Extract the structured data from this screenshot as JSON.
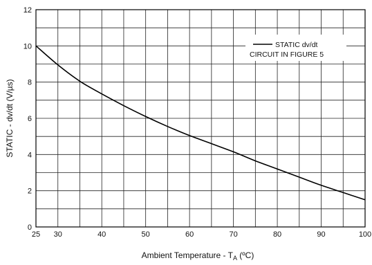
{
  "chart_data": {
    "type": "line",
    "title": "",
    "xlabel": {
      "main": "Ambient Temperature - T",
      "sub": "A",
      "unit": " (ºC)"
    },
    "ylabel": "STATIC - dv/dt (V/µs)",
    "xlim": [
      25,
      100
    ],
    "ylim": [
      0,
      12
    ],
    "x_ticks": [
      25,
      30,
      40,
      50,
      60,
      70,
      80,
      90,
      100
    ],
    "y_ticks": [
      0,
      2,
      4,
      6,
      8,
      10,
      12
    ],
    "x_grid": [
      25,
      30,
      35,
      40,
      45,
      50,
      55,
      60,
      65,
      70,
      75,
      80,
      85,
      90,
      95,
      100
    ],
    "y_grid": [
      0,
      1,
      2,
      3,
      4,
      5,
      6,
      7,
      8,
      9,
      10,
      11,
      12
    ],
    "grid": true,
    "legend": {
      "placement": "top-right",
      "entries": [
        "STATIC dv/dt",
        "CIRCUIT IN FIGURE 5"
      ]
    },
    "series": [
      {
        "name": "STATIC dv/dt",
        "color": "#000000",
        "x": [
          25,
          30,
          35,
          40,
          45,
          50,
          55,
          60,
          65,
          70,
          75,
          80,
          85,
          90,
          95,
          100
        ],
        "y": [
          10.0,
          8.95,
          8.05,
          7.35,
          6.7,
          6.1,
          5.55,
          5.05,
          4.6,
          4.15,
          3.65,
          3.2,
          2.75,
          2.3,
          1.9,
          1.5
        ]
      }
    ]
  }
}
